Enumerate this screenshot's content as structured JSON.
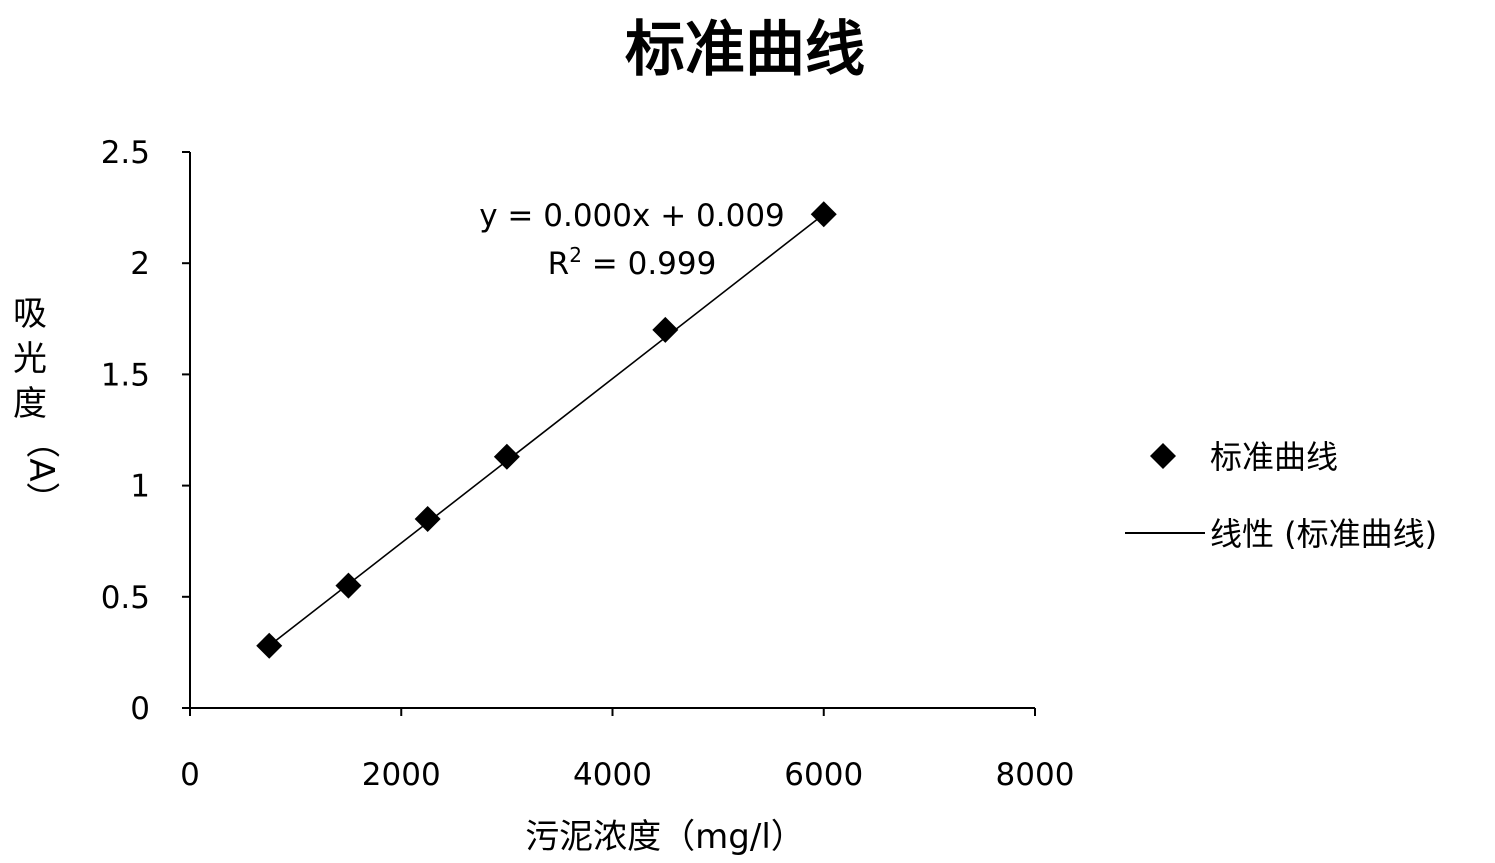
{
  "chart_data": {
    "type": "scatter",
    "title": "标准曲线",
    "xlabel": "污泥浓度（mg/l）",
    "ylabel": [
      "吸",
      "光",
      "度",
      "（A）"
    ],
    "xlim": [
      0,
      8000
    ],
    "ylim": [
      0,
      2.5
    ],
    "x_ticks": [
      0,
      2000,
      4000,
      6000,
      8000
    ],
    "y_ticks": [
      0,
      0.5,
      1,
      1.5,
      2,
      2.5
    ],
    "x_tick_labels": [
      "0",
      "2000",
      "4000",
      "6000",
      "8000"
    ],
    "y_tick_labels": [
      "0",
      "0.5",
      "1",
      "1.5",
      "2",
      "2.5"
    ],
    "grid": false,
    "legend_position": "right",
    "series": [
      {
        "name": "标准曲线",
        "marker": "diamond",
        "color": "#000000",
        "x": [
          750,
          1500,
          2250,
          3000,
          4500,
          6000
        ],
        "y": [
          0.28,
          0.55,
          0.85,
          1.13,
          1.7,
          2.22
        ]
      }
    ],
    "trendline": {
      "name": "线性 (标准曲线)",
      "type": "linear",
      "color": "#000000",
      "x": [
        750,
        6000
      ],
      "y": [
        0.28,
        2.22
      ],
      "equation": "y = 0.000x + 0.009",
      "r_squared_prefix": "R",
      "r_squared_sup": "2",
      "r_squared_suffix": " = 0.999"
    }
  }
}
